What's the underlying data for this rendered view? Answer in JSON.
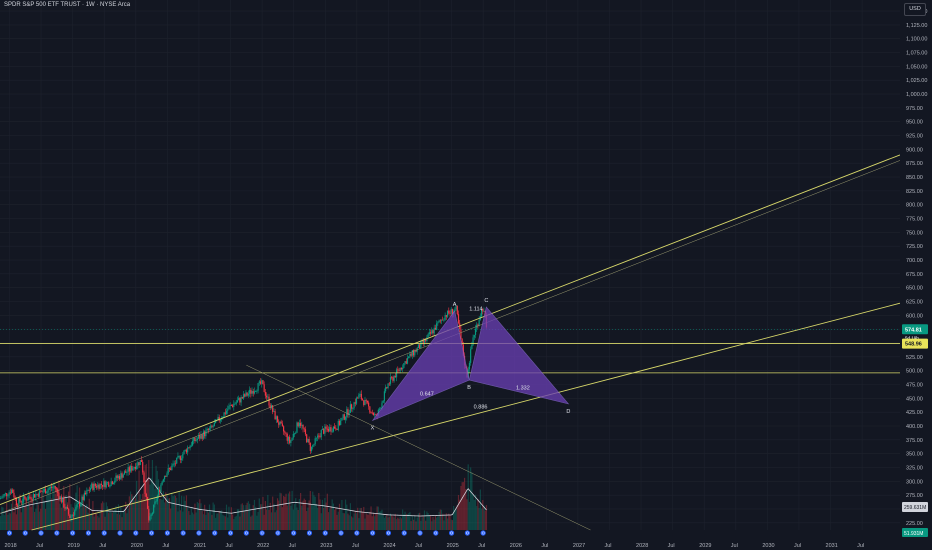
{
  "header": {
    "title": "SPDR S&P 500 ETF TRUST · 1W · NYSE Arca",
    "currency": "USD"
  },
  "colors": {
    "background": "#131722",
    "grid": "#1e222d",
    "axis_text": "#b2b5be",
    "candle_up": "#089981",
    "candle_down": "#f23645",
    "trendline": "#d8d86a",
    "harmonic_fill": "#6a3fb5",
    "volume_avg": "#d1d4dc",
    "event_icon": "#2962ff"
  },
  "chart_data": {
    "type": "candlestick",
    "title": "SPDR S&P 500 ETF TRUST · 1W · NYSE Arca",
    "y_axis": {
      "unit": "USD",
      "range": [
        212,
        1170
      ],
      "ticks": [
        225,
        250,
        275,
        300,
        325,
        350,
        375,
        400,
        425,
        450,
        475,
        500,
        525,
        550,
        575,
        600,
        625,
        650,
        675,
        700,
        725,
        750,
        775,
        800,
        825,
        850,
        875,
        900,
        925,
        950,
        975,
        1000,
        1025,
        1050,
        1075,
        1100,
        1125,
        1150
      ],
      "tick_labels": [
        "225.00",
        "250.00",
        "275.00",
        "300.00",
        "325.00",
        "350.00",
        "375.00",
        "400.00",
        "425.00",
        "450.00",
        "475.00",
        "500.00",
        "525.00",
        "550.00",
        "575.00",
        "600.00",
        "625.00",
        "650.00",
        "675.00",
        "700.00",
        "725.00",
        "750.00",
        "775.00",
        "800.00",
        "825.00",
        "850.00",
        "875.00",
        "900.00",
        "925.00",
        "950.00",
        "975.00",
        "1,000.00",
        "1,025.00",
        "1,050.00",
        "1,075.00",
        "1,100.00",
        "1,125.00",
        "1,150.00"
      ]
    },
    "x_axis": {
      "range": [
        2017.85,
        2032.1
      ],
      "ticks": [
        {
          "t": 2018.0,
          "label": "2018"
        },
        {
          "t": 2018.5,
          "label": "Jul"
        },
        {
          "t": 2019.0,
          "label": "2019"
        },
        {
          "t": 2019.5,
          "label": "Jul"
        },
        {
          "t": 2020.0,
          "label": "2020"
        },
        {
          "t": 2020.5,
          "label": "Jul"
        },
        {
          "t": 2021.0,
          "label": "2021"
        },
        {
          "t": 2021.5,
          "label": "Jul"
        },
        {
          "t": 2022.0,
          "label": "2022"
        },
        {
          "t": 2022.5,
          "label": "Jul"
        },
        {
          "t": 2023.0,
          "label": "2023"
        },
        {
          "t": 2023.5,
          "label": "Jul"
        },
        {
          "t": 2024.0,
          "label": "2024"
        },
        {
          "t": 2024.5,
          "label": "Jul"
        },
        {
          "t": 2025.0,
          "label": "2025"
        },
        {
          "t": 2025.5,
          "label": "Jul"
        },
        {
          "t": 2026.0,
          "label": "2026"
        },
        {
          "t": 2026.5,
          "label": "Jul"
        },
        {
          "t": 2027.0,
          "label": "2027"
        },
        {
          "t": 2027.5,
          "label": "Jul"
        },
        {
          "t": 2028.0,
          "label": "2028"
        },
        {
          "t": 2028.5,
          "label": "Jul"
        },
        {
          "t": 2029.0,
          "label": "2029"
        },
        {
          "t": 2029.5,
          "label": "Jul"
        },
        {
          "t": 2030.0,
          "label": "2030"
        },
        {
          "t": 2030.5,
          "label": "Jul"
        },
        {
          "t": 2031.0,
          "label": "2031"
        },
        {
          "t": 2031.5,
          "label": "Jul"
        }
      ]
    },
    "price_path": [
      [
        2017.85,
        268
      ],
      [
        2018.05,
        285
      ],
      [
        2018.12,
        262
      ],
      [
        2018.4,
        275
      ],
      [
        2018.72,
        291
      ],
      [
        2018.97,
        235
      ],
      [
        2019.3,
        290
      ],
      [
        2019.6,
        298
      ],
      [
        2019.9,
        320
      ],
      [
        2020.1,
        338
      ],
      [
        2020.22,
        225
      ],
      [
        2020.45,
        310
      ],
      [
        2020.65,
        335
      ],
      [
        2020.9,
        370
      ],
      [
        2021.2,
        395
      ],
      [
        2021.5,
        435
      ],
      [
        2021.75,
        455
      ],
      [
        2022.0,
        477
      ],
      [
        2022.2,
        420
      ],
      [
        2022.45,
        370
      ],
      [
        2022.6,
        410
      ],
      [
        2022.78,
        358
      ],
      [
        2022.95,
        390
      ],
      [
        2023.2,
        400
      ],
      [
        2023.55,
        455
      ],
      [
        2023.82,
        415
      ],
      [
        2024.0,
        475
      ],
      [
        2024.3,
        520
      ],
      [
        2024.6,
        555
      ],
      [
        2024.9,
        600
      ],
      [
        2025.08,
        611
      ],
      [
        2025.25,
        490
      ],
      [
        2025.35,
        560
      ],
      [
        2025.5,
        615
      ],
      [
        2025.55,
        590
      ],
      [
        2025.55,
        575
      ]
    ],
    "volume_path": [
      [
        2017.85,
        0.25
      ],
      [
        2018.3,
        0.4
      ],
      [
        2018.95,
        0.55
      ],
      [
        2019.3,
        0.3
      ],
      [
        2019.8,
        0.28
      ],
      [
        2020.2,
        0.9
      ],
      [
        2020.5,
        0.45
      ],
      [
        2021.0,
        0.32
      ],
      [
        2021.5,
        0.25
      ],
      [
        2022.0,
        0.35
      ],
      [
        2022.5,
        0.45
      ],
      [
        2023.0,
        0.38
      ],
      [
        2023.5,
        0.28
      ],
      [
        2024.0,
        0.22
      ],
      [
        2024.5,
        0.2
      ],
      [
        2025.0,
        0.22
      ],
      [
        2025.25,
        0.7
      ],
      [
        2025.55,
        0.3
      ]
    ],
    "trendlines": [
      {
        "from": [
          2017.85,
          258
        ],
        "to": [
          2032.1,
          890
        ],
        "style": "solid"
      },
      {
        "from": [
          2017.85,
          242
        ],
        "to": [
          2032.1,
          880
        ],
        "style": "thin"
      },
      {
        "from": [
          2018.35,
          212
        ],
        "to": [
          2032.1,
          622
        ],
        "style": "solid"
      },
      {
        "from": [
          2021.75,
          510
        ],
        "to": [
          2027.2,
          212
        ],
        "style": "thin"
      }
    ],
    "horizontal_levels": [
      {
        "value": 548.96,
        "label": "548.96"
      },
      {
        "value": 496.0
      }
    ],
    "current_price": {
      "value": 574.81,
      "label": "574.81",
      "countdown": "5d 19h"
    },
    "volume_avg_value": {
      "label": "259.631M"
    },
    "volume_value": {
      "label": "51.931M"
    },
    "harmonic_pattern": {
      "points": [
        {
          "name": "X",
          "t": 2023.75,
          "p": 410
        },
        {
          "name": "A",
          "t": 2025.05,
          "p": 608
        },
        {
          "name": "B",
          "t": 2025.28,
          "p": 483
        },
        {
          "name": "C",
          "t": 2025.55,
          "p": 615
        },
        {
          "name": "D",
          "t": 2026.85,
          "p": 440
        }
      ],
      "ratios": [
        {
          "text": "0.647",
          "t": 2024.5,
          "p": 455
        },
        {
          "text": "1.114",
          "t": 2025.28,
          "p": 609
        },
        {
          "text": "0.886",
          "t": 2025.35,
          "p": 432
        },
        {
          "text": "1.332",
          "t": 2026.02,
          "p": 466
        }
      ]
    },
    "legend": "none",
    "grid": true
  }
}
